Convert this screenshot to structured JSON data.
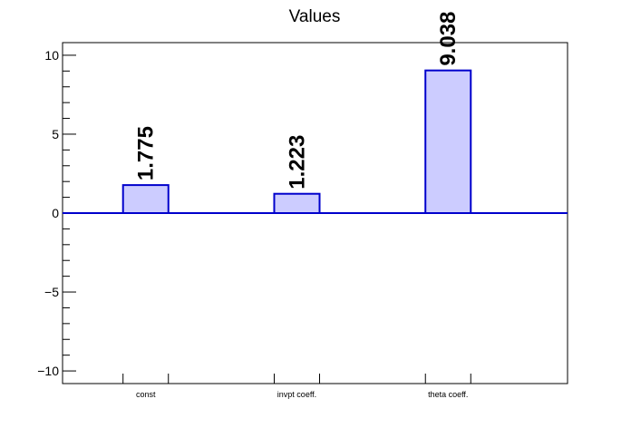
{
  "chart_data": {
    "type": "bar",
    "title": "Values",
    "categories": [
      "const",
      "invpt coeff.",
      "theta coeff."
    ],
    "values": [
      1.775,
      1.223,
      9.038
    ],
    "data_labels": [
      "1.775",
      "1.223",
      "9.038"
    ],
    "ylim": [
      -10.8,
      10.8
    ],
    "yticks": [
      -10,
      -5,
      0,
      5,
      10
    ],
    "ytick_labels": [
      "−10",
      "−5",
      "0",
      "5",
      "10"
    ],
    "xlabel": "",
    "ylabel": "",
    "grid": false,
    "colors": {
      "bar_fill": "#ccccff",
      "bar_stroke": "#0000cc",
      "zero_line": "#0000cc",
      "axis": "#000000"
    }
  }
}
